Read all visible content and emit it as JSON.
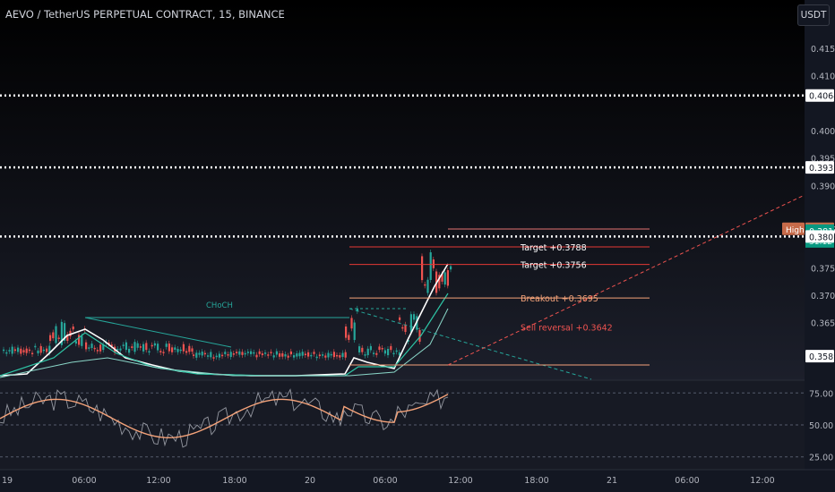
{
  "header": {
    "title": "AEVO / TetherUS PERPETUAL CONTRACT, 15, BINANCE",
    "currency_button": "USDT"
  },
  "price_axis": {
    "ticks": [
      "0.4150",
      "0.4100",
      "0.4000",
      "0.3950",
      "0.3900",
      "0.3750",
      "0.3700",
      "0.3650"
    ],
    "labels": [
      {
        "text": "0.4064",
        "style": "white",
        "value": 0.4064
      },
      {
        "text": "0.3933",
        "style": "white",
        "value": 0.3933
      },
      {
        "text": "0.3821",
        "style": "orange",
        "value": 0.3821,
        "tag": "High"
      },
      {
        "text": "0.3816",
        "style": "green",
        "value": 0.3816,
        "sub": "31:12"
      },
      {
        "text": "0.3807",
        "style": "white",
        "value": 0.3807
      },
      {
        "text": "0.3589",
        "style": "white",
        "value": 0.3589
      }
    ]
  },
  "time_axis": [
    "19",
    "06:00",
    "12:00",
    "18:00",
    "20",
    "06:00",
    "12:00",
    "18:00",
    "21",
    "06:00",
    "12:00"
  ],
  "annotations": {
    "choch": "CHoCH",
    "target1": "Target +0.3788",
    "target2": "Target +0.3756",
    "breakout": "Breakout +0.3695",
    "sell_reversal": "Sell reversal +0.3642"
  },
  "oscillator": {
    "ticks": [
      "75.00",
      "50.00",
      "25.00"
    ]
  },
  "colors": {
    "background": "#131722",
    "up": "#26a69a",
    "down": "#ef5350",
    "target": "#e53935",
    "breakout": "#f5a37a",
    "high_tag": "#c76b4a",
    "last_price": "#089981"
  }
}
